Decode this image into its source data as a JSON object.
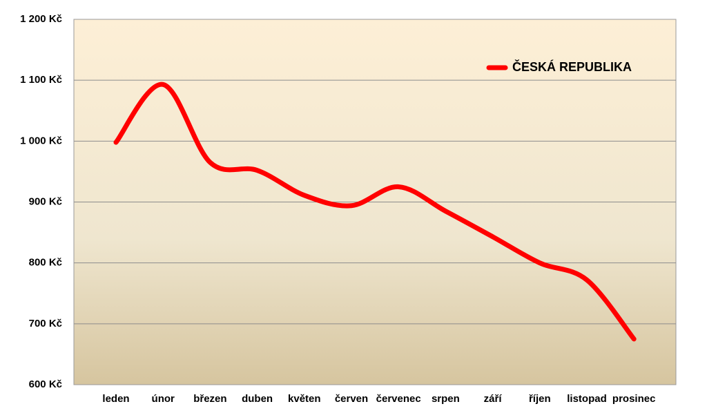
{
  "chart_data": {
    "type": "line",
    "categories": [
      "leden",
      "únor",
      "březen",
      "duben",
      "květen",
      "červen",
      "červenec",
      "srpen",
      "září",
      "říjen",
      "listopad",
      "prosinec"
    ],
    "series": [
      {
        "name": "ČESKÁ REPUBLIKA",
        "color": "#ff0000",
        "values": [
          998,
          1093,
          965,
          952,
          911,
          894,
          925,
          885,
          843,
          800,
          772,
          675
        ]
      }
    ],
    "ylim": [
      600,
      1200
    ],
    "yticks": [
      {
        "value": 600,
        "label": "600 Kč"
      },
      {
        "value": 700,
        "label": "700 Kč"
      },
      {
        "value": 800,
        "label": "800 Kč"
      },
      {
        "value": 900,
        "label": "900 Kč"
      },
      {
        "value": 1000,
        "label": "1 000 Kč"
      },
      {
        "value": 1100,
        "label": "1 100 Kč"
      },
      {
        "value": 1200,
        "label": "1 200 Kč"
      }
    ],
    "grid": true,
    "smooth": true,
    "legend": "top-right"
  }
}
